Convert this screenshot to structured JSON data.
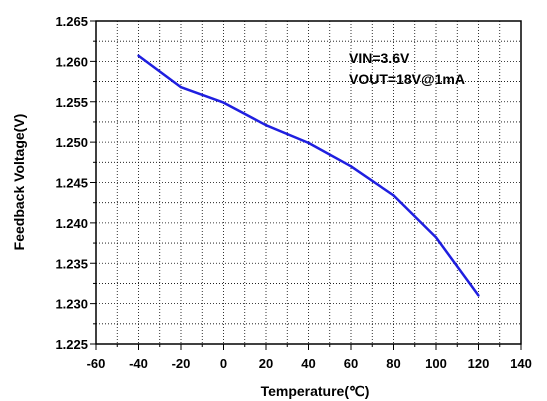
{
  "chart_data": {
    "type": "line",
    "xlabel": "Temperature(℃)",
    "ylabel": "Feedback Voltage(V)",
    "xlim": [
      -60,
      140
    ],
    "ylim": [
      1.225,
      1.265
    ],
    "x_ticks": [
      "-60",
      "-40",
      "-20",
      "0",
      "20",
      "40",
      "60",
      "80",
      "100",
      "120",
      "140"
    ],
    "y_ticks": [
      "1.225",
      "1.230",
      "1.235",
      "1.240",
      "1.245",
      "1.250",
      "1.255",
      "1.260",
      "1.265"
    ],
    "grid": true,
    "grid_style": "dotted",
    "series": [
      {
        "color": "#1f1fe0",
        "x": [
          -40,
          -20,
          0,
          20,
          40,
          60,
          80,
          100,
          120
        ],
        "y": [
          1.2607,
          1.2568,
          1.2549,
          1.2521,
          1.2499,
          1.247,
          1.2434,
          1.2382,
          1.231
        ]
      }
    ],
    "annotations": [
      "VIN=3.6V",
      "VOUT=18V@1mA"
    ]
  }
}
